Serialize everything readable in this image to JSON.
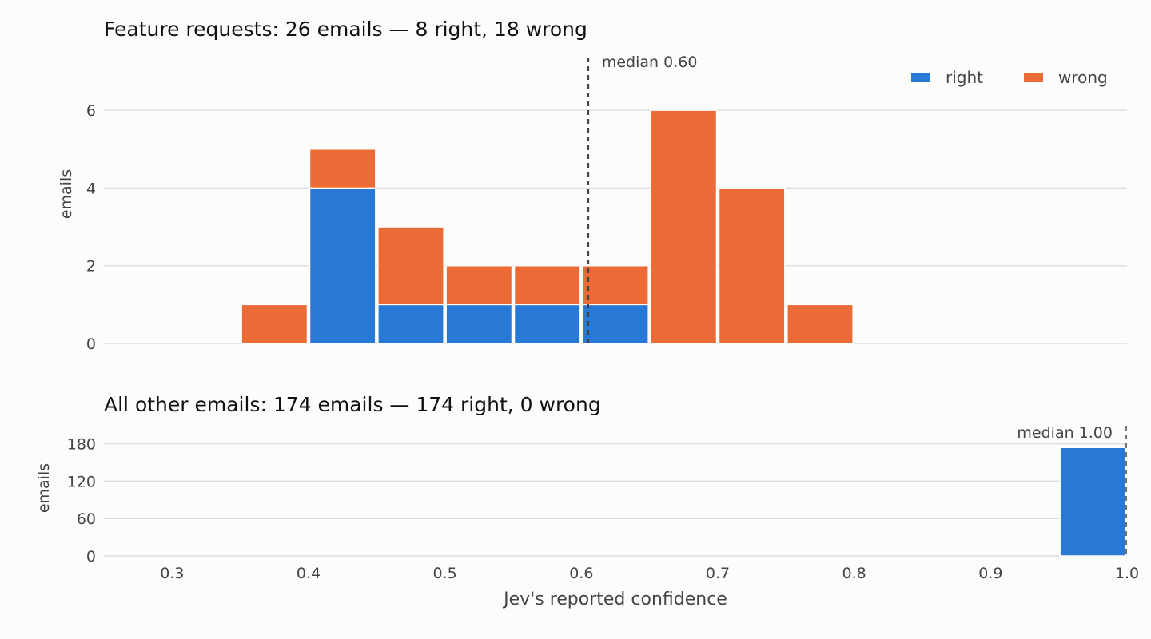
{
  "chart_data": [
    {
      "type": "bar",
      "stacked": true,
      "title": "Feature requests: 26 emails — 8 right, 18 wrong",
      "xlabel": "",
      "ylabel": "emails",
      "bin_edges": [
        0.35,
        0.4,
        0.45,
        0.5,
        0.55,
        0.6,
        0.65,
        0.7,
        0.75
      ],
      "series": [
        {
          "name": "right",
          "color": "#2878d6",
          "values": [
            0,
            4,
            1,
            1,
            1,
            1,
            0,
            0
          ]
        },
        {
          "name": "wrong",
          "color": "#eb6a35",
          "values": [
            1,
            1,
            2,
            1,
            1,
            1,
            6,
            4
          ]
        }
      ],
      "extra_bins": [
        {
          "range": [
            0.75,
            0.8
          ],
          "right": 0,
          "wrong": 1
        }
      ],
      "yticks": [
        0,
        2,
        4,
        6
      ],
      "ylim": [
        0,
        7.4
      ],
      "xlim": [
        0.25,
        1.0
      ],
      "median": {
        "value": 0.605,
        "label": "median 0.60"
      },
      "legend": {
        "position": "top-right",
        "entries": [
          "right",
          "wrong"
        ]
      },
      "grid": true
    },
    {
      "type": "bar",
      "stacked": true,
      "title": "All other emails: 174 emails — 174 right, 0 wrong",
      "xlabel": "Jev's reported confidence",
      "ylabel": "emails",
      "bins": [
        {
          "range": [
            0.95,
            1.0
          ],
          "right": 174,
          "wrong": 0
        }
      ],
      "yticks": [
        0,
        60,
        120,
        180
      ],
      "ylim": [
        0,
        200
      ],
      "xlim": [
        0.25,
        1.0
      ],
      "xticks": [
        "0.3",
        "0.4",
        "0.5",
        "0.6",
        "0.7",
        "0.8",
        "0.9",
        "1.0"
      ],
      "median": {
        "value": 1.0,
        "label": "median 1.00"
      },
      "grid": true
    }
  ]
}
